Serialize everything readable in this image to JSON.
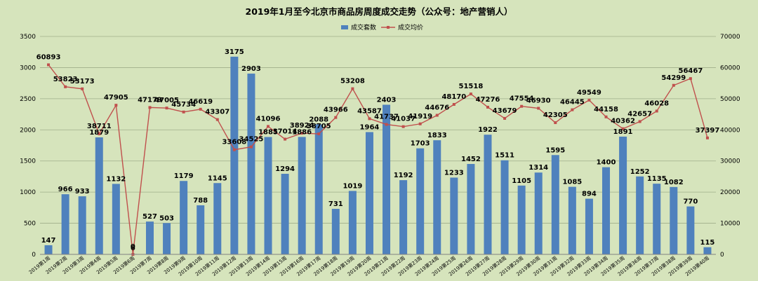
{
  "chart_data": {
    "type": "bar+line",
    "title": "2019年1月至今北京市商品房周度成交走势（公众号：地产营销人）",
    "categories": [
      "2019第1周",
      "2019第2周",
      "2019第3周",
      "2019第4周",
      "2019第5周",
      "2019第6周",
      "2019第7周",
      "2019第8周",
      "2019第9周",
      "2019第10周",
      "2019第11周",
      "2019第12周",
      "2019第13周",
      "2019第14周",
      "2019第15周",
      "2019第16周",
      "2019第17周",
      "2019第18周",
      "2019第19周",
      "2019第20周",
      "2019第21周",
      "2019第22周",
      "2019第23周",
      "2019第24周",
      "2019第25周",
      "2019第26周",
      "2019第27周",
      "2019第28周",
      "2019第29周",
      "2019第30周",
      "2019第31周",
      "2019第32周",
      "2019第33周",
      "2019第34周",
      "2019第35周",
      "2019第36周",
      "2019第37周",
      "2019第38周",
      "2019第39周",
      "2019第40周"
    ],
    "series": [
      {
        "name": "成交套数",
        "type": "bar",
        "axis": "left",
        "color": "#4f81bd",
        "values": [
          147,
          966,
          933,
          1879,
          1132,
          6,
          527,
          503,
          1179,
          788,
          1145,
          3175,
          2903,
          1885,
          1294,
          1886,
          2088,
          731,
          1019,
          1964,
          2403,
          1192,
          1703,
          1833,
          1233,
          1452,
          1922,
          1511,
          1105,
          1314,
          1595,
          1085,
          894,
          1400,
          1891,
          1252,
          1135,
          1082,
          770,
          115
        ]
      },
      {
        "name": "成交均价",
        "type": "line",
        "axis": "right",
        "color": "#c0504d",
        "values": [
          60893,
          53823,
          53173,
          38711,
          47905,
          0,
          47179,
          47005,
          45734,
          46619,
          43307,
          33608,
          34525,
          41096,
          37014,
          38924,
          38705,
          43966,
          53208,
          43587,
          41737,
          41037,
          41919,
          44676,
          48170,
          51518,
          47276,
          43679,
          47554,
          46930,
          42305,
          46445,
          49549,
          44158,
          40362,
          42657,
          46028,
          54299,
          56467,
          37397
        ]
      }
    ],
    "y_left": {
      "ylim": [
        0,
        3500
      ],
      "ticks": [
        "0",
        "500",
        "1000",
        "1500",
        "2000",
        "2500",
        "3000",
        "3500"
      ]
    },
    "y_right": {
      "ylim": [
        0,
        70000
      ],
      "ticks": [
        "0",
        "10000",
        "20000",
        "30000",
        "40000",
        "50000",
        "60000",
        "70000"
      ]
    },
    "grid": true,
    "legend_position": "top-center"
  }
}
